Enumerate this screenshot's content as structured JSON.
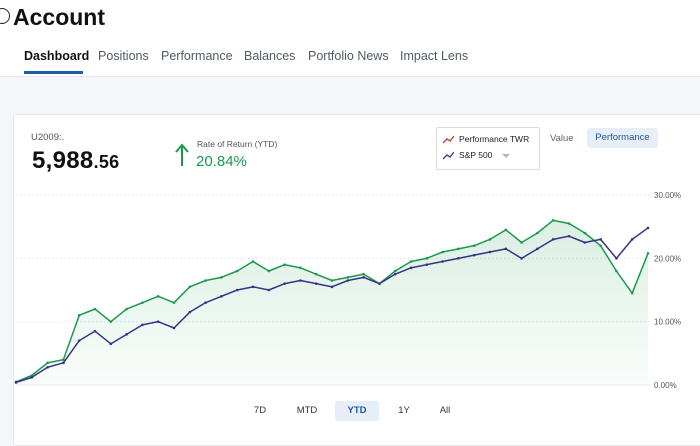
{
  "header": {
    "title": "Account",
    "tabs": [
      {
        "label": "Dashboard",
        "active": true
      },
      {
        "label": "Positions"
      },
      {
        "label": "Performance"
      },
      {
        "label": "Balances"
      },
      {
        "label": "Portfolio News"
      },
      {
        "label": "Impact Lens"
      }
    ]
  },
  "summary": {
    "account_id": "U2009:.",
    "value_int": "5,988",
    "value_dec": ".56",
    "ror_label": "Rate of Return (YTD)",
    "ror_value": "20.84%",
    "ror_icon": "arrow-up-icon"
  },
  "legend": {
    "items": [
      {
        "label": "Performance TWR",
        "color": "#c0392b",
        "color2": "#1a9a4b"
      },
      {
        "label": "S&P 500",
        "color": "#3b3286"
      }
    ]
  },
  "view_toggle": {
    "value_label": "Value",
    "performance_label": "Performance",
    "selected": "Performance"
  },
  "ranges": [
    {
      "label": "7D"
    },
    {
      "label": "MTD"
    },
    {
      "label": "YTD",
      "active": true
    },
    {
      "label": "1Y"
    },
    {
      "label": "All"
    }
  ],
  "chart_data": {
    "type": "line",
    "y_ticks": [
      "0.00%",
      "10.00%",
      "20.00%",
      "30.00%"
    ],
    "ylim": [
      0,
      30
    ],
    "x": [
      0,
      1,
      2,
      3,
      4,
      5,
      6,
      7,
      8,
      9,
      10,
      11,
      12,
      13,
      14,
      15,
      16,
      17,
      18,
      19,
      20,
      21,
      22,
      23,
      24,
      25,
      26,
      27,
      28,
      29,
      30,
      31,
      32,
      33,
      34,
      35,
      36,
      37,
      38,
      39,
      40
    ],
    "series": [
      {
        "name": "Performance TWR",
        "color": "#1a9a4b",
        "values": [
          0.5,
          1.5,
          3.5,
          4,
          11,
          12,
          10,
          12,
          13,
          14,
          13,
          15.5,
          16.5,
          17,
          18,
          19.5,
          18,
          19,
          18.5,
          17.5,
          16.5,
          17,
          17.5,
          16,
          18,
          19.5,
          20,
          21,
          21.5,
          22,
          23,
          24.5,
          22.5,
          24,
          26,
          25.5,
          24,
          22,
          18,
          14.5,
          20.8
        ]
      },
      {
        "name": "S&P 500",
        "color": "#3b3286",
        "values": [
          0.4,
          1.2,
          2.8,
          3.5,
          7,
          8.5,
          6.5,
          8,
          9.5,
          10,
          9,
          11.5,
          13,
          14,
          15,
          15.5,
          15,
          16,
          16.5,
          16,
          15.5,
          16.5,
          17,
          16,
          17.5,
          18.5,
          19,
          19.5,
          20,
          20.5,
          21,
          21.5,
          20,
          21.5,
          23,
          23.5,
          22.5,
          23,
          20,
          23,
          24.8
        ]
      }
    ]
  }
}
